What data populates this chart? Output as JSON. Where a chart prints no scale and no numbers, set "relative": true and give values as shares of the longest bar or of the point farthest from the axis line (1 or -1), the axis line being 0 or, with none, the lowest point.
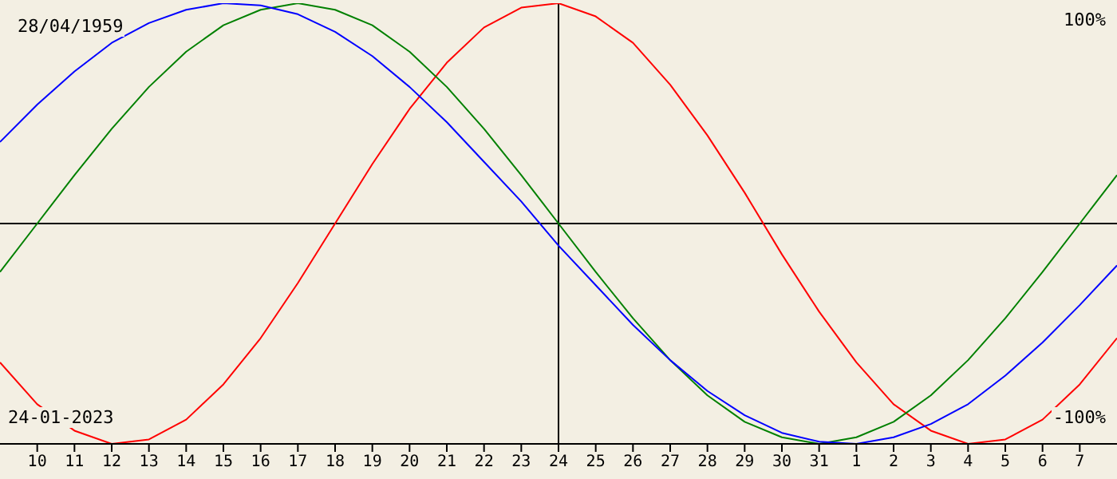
{
  "chart_data": {
    "type": "line",
    "relative": true,
    "annotations": [
      "28/04/1959",
      "24-01-2023",
      "100%",
      "-100%"
    ],
    "x": [
      "2023-01-09",
      "2023-01-10",
      "2023-01-11",
      "2023-01-12",
      "2023-01-13",
      "2023-01-14",
      "2023-01-15",
      "2023-01-16",
      "2023-01-17",
      "2023-01-18",
      "2023-01-19",
      "2023-01-20",
      "2023-01-21",
      "2023-01-22",
      "2023-01-23",
      "2023-01-24",
      "2023-01-25",
      "2023-01-26",
      "2023-01-27",
      "2023-01-28",
      "2023-01-29",
      "2023-01-30",
      "2023-01-31",
      "2023-02-01",
      "2023-02-02",
      "2023-02-03",
      "2023-02-04",
      "2023-02-05",
      "2023-02-06",
      "2023-02-07",
      "2023-02-08"
    ],
    "series": [
      {
        "color": "#ff0000",
        "values": [
          -0.63,
          -0.82,
          -0.94,
          -1,
          -0.98,
          -0.89,
          -0.73,
          -0.52,
          -0.27,
          0,
          0.27,
          0.52,
          0.73,
          0.89,
          0.98,
          1,
          0.94,
          0.82,
          0.63,
          0.4,
          0.14,
          -0.14,
          -0.4,
          -0.63,
          -0.82,
          -0.94,
          -1,
          -0.98,
          -0.89,
          -0.73,
          -0.52
        ]
      },
      {
        "color": "#008000",
        "values": [
          -0.22,
          0,
          0.22,
          0.43,
          0.62,
          0.78,
          0.9,
          0.97,
          1,
          0.97,
          0.9,
          0.78,
          0.62,
          0.43,
          0.22,
          0,
          -0.22,
          -0.43,
          -0.62,
          -0.78,
          -0.9,
          -0.97,
          -1,
          -0.97,
          -0.9,
          -0.78,
          -0.62,
          -0.43,
          -0.22,
          0,
          0.22
        ]
      },
      {
        "color": "#0000ff",
        "values": [
          0.37,
          0.54,
          0.69,
          0.82,
          0.91,
          0.97,
          1,
          0.99,
          0.95,
          0.87,
          0.76,
          0.62,
          0.46,
          0.28,
          0.1,
          -0.1,
          -0.28,
          -0.46,
          -0.62,
          -0.76,
          -0.87,
          -0.95,
          -0.99,
          -1,
          -0.97,
          -0.91,
          -0.82,
          -0.69,
          -0.54,
          -0.37,
          -0.19
        ]
      }
    ],
    "xlim": [
      "2023-01-09",
      "2023-02-08"
    ],
    "xticks": [
      {
        "value": "2023-01-10",
        "label": "10"
      },
      {
        "value": "2023-01-11",
        "label": "11"
      },
      {
        "value": "2023-01-12",
        "label": "12"
      },
      {
        "value": "2023-01-13",
        "label": "13"
      },
      {
        "value": "2023-01-14",
        "label": "14"
      },
      {
        "value": "2023-01-15",
        "label": "15"
      },
      {
        "value": "2023-01-16",
        "label": "16"
      },
      {
        "value": "2023-01-17",
        "label": "17"
      },
      {
        "value": "2023-01-18",
        "label": "18"
      },
      {
        "value": "2023-01-19",
        "label": "19"
      },
      {
        "value": "2023-01-20",
        "label": "20"
      },
      {
        "value": "2023-01-21",
        "label": "21"
      },
      {
        "value": "2023-01-22",
        "label": "22"
      },
      {
        "value": "2023-01-23",
        "label": "23"
      },
      {
        "value": "2023-01-24",
        "label": "24"
      },
      {
        "value": "2023-01-25",
        "label": "25"
      },
      {
        "value": "2023-01-26",
        "label": "26"
      },
      {
        "value": "2023-01-27",
        "label": "27"
      },
      {
        "value": "2023-01-28",
        "label": "28"
      },
      {
        "value": "2023-01-29",
        "label": "29"
      },
      {
        "value": "2023-01-30",
        "label": "30"
      },
      {
        "value": "2023-01-31",
        "label": "31"
      },
      {
        "value": "2023-02-01",
        "label": "1"
      },
      {
        "value": "2023-02-02",
        "label": "2"
      },
      {
        "value": "2023-02-03",
        "label": "3"
      },
      {
        "value": "2023-02-04",
        "label": "4"
      },
      {
        "value": "2023-02-05",
        "label": "5"
      },
      {
        "value": "2023-02-06",
        "label": "6"
      },
      {
        "value": "2023-02-07",
        "label": "7"
      }
    ],
    "ref_lines": [
      {
        "axis": "x",
        "value": "2023-01-24",
        "color": "#000000"
      },
      {
        "axis": "y",
        "value": 0,
        "color": "#000000"
      }
    ],
    "grid": false,
    "legend": false
  }
}
